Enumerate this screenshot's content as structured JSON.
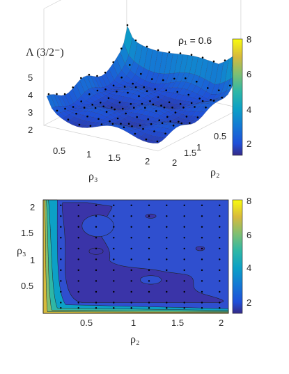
{
  "chart_data": [
    {
      "type": "surface3d",
      "annotation": "ρ₁ = 0.6",
      "zlabel": "Λ (3/2⁻)",
      "xlabel": "ρ₃",
      "ylabel": "ρ₂",
      "x_ticks": [
        "0.5",
        "1",
        "1.5",
        "2"
      ],
      "y_ticks": [
        "0.5",
        "1",
        "1.5",
        "2"
      ],
      "z_ticks": [
        "2",
        "3",
        "4",
        "5"
      ],
      "zlim": [
        1.5,
        8
      ],
      "colorbar": {
        "ticks": [
          "2",
          "4",
          "6",
          "8"
        ],
        "range": [
          1.5,
          8
        ],
        "colormap": "parula"
      },
      "grid_rho2": [
        0.05,
        0.2,
        0.4,
        0.6,
        0.8,
        1.0,
        1.2,
        1.4,
        1.6,
        1.8,
        2.0
      ],
      "grid_rho3": [
        0.05,
        0.2,
        0.4,
        0.6,
        0.8,
        1.0,
        1.2,
        1.4,
        1.6,
        1.8,
        2.0
      ],
      "points_note": "black dots mark computed (ρ2, ρ3) lattice points"
    },
    {
      "type": "contour",
      "xlabel": "ρ₂",
      "ylabel": "ρ₃",
      "x_ticks": [
        "0.5",
        "1",
        "1.5",
        "2"
      ],
      "y_ticks": [
        "0.5",
        "1",
        "1.5",
        "2"
      ],
      "xlim": [
        0,
        2.1
      ],
      "ylim": [
        0,
        2.1
      ],
      "contour_levels": [
        2,
        3,
        4,
        5,
        6,
        7
      ],
      "colorbar": {
        "ticks": [
          "2",
          "4",
          "6",
          "8"
        ],
        "range": [
          1.5,
          8
        ],
        "colormap": "parula"
      },
      "sample_points": {
        "rho2": [
          0.2,
          0.4,
          0.6,
          0.8,
          1.0,
          1.2,
          1.4,
          1.6,
          1.8,
          2.0
        ],
        "rho3": [
          0.1,
          0.2,
          0.4,
          0.6,
          0.8,
          1.0,
          1.2,
          1.4,
          1.6,
          1.8,
          2.0
        ]
      }
    }
  ]
}
